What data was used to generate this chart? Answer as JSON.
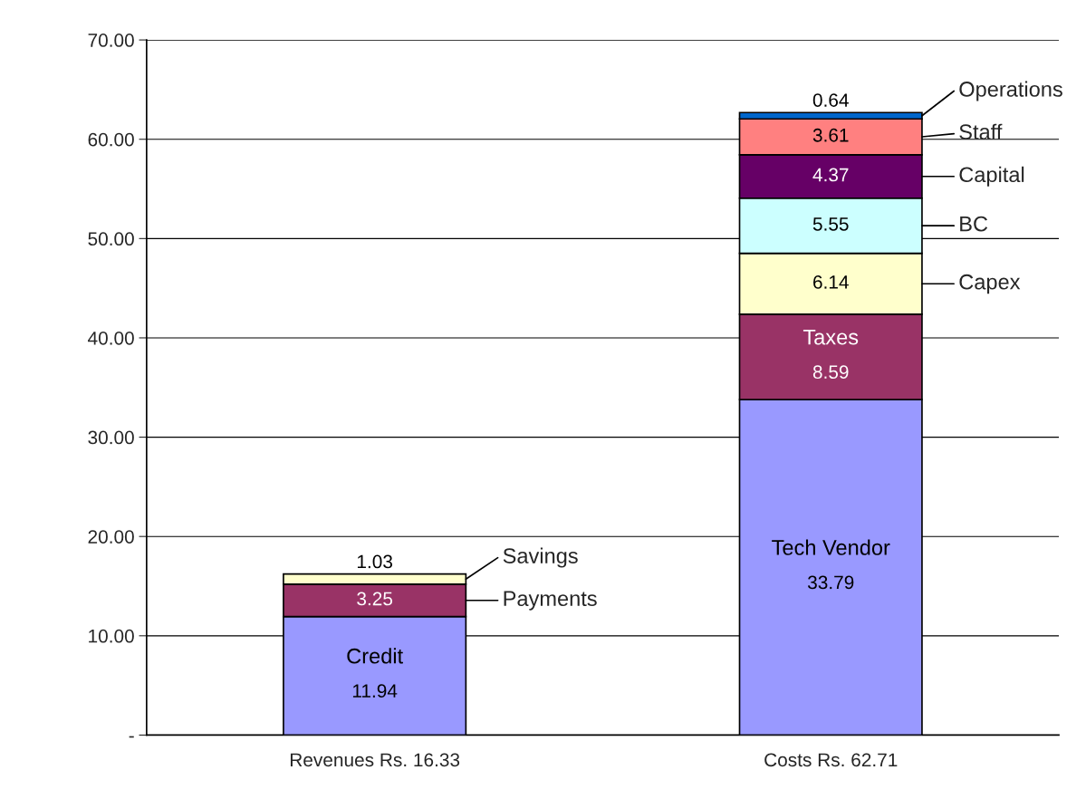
{
  "chart_data": {
    "type": "bar",
    "stacked": true,
    "data_labels": true,
    "legend": "right",
    "grid": "y",
    "categories": [
      "Revenues Rs. 16.33",
      "Costs Rs. 62.71"
    ],
    "series": [
      {
        "name": "Credit",
        "color": "#9999ff",
        "values": [
          11.94,
          null
        ]
      },
      {
        "name": "Payments",
        "color": "#993366",
        "values": [
          3.25,
          null
        ]
      },
      {
        "name": "Savings",
        "color": "#ffffcc",
        "values": [
          1.03,
          null
        ]
      },
      {
        "name": "Tech Vendor",
        "color": "#9999ff",
        "values": [
          null,
          33.79
        ]
      },
      {
        "name": "Taxes",
        "color": "#993366",
        "values": [
          null,
          8.59
        ]
      },
      {
        "name": "Capex",
        "color": "#ffffcc",
        "values": [
          null,
          6.14
        ]
      },
      {
        "name": "BC",
        "color": "#ccffff",
        "values": [
          null,
          5.55
        ]
      },
      {
        "name": "Capital",
        "color": "#660066",
        "values": [
          null,
          4.37
        ]
      },
      {
        "name": "Staff",
        "color": "#ff8080",
        "values": [
          null,
          3.61
        ]
      },
      {
        "name": "Operations",
        "color": "#0066cc",
        "values": [
          null,
          0.64
        ]
      }
    ],
    "ylim": [
      0,
      70
    ],
    "yticks": [
      {
        "value": 0,
        "label": "-"
      },
      {
        "value": 10,
        "label": "10.00"
      },
      {
        "value": 20,
        "label": "20.00"
      },
      {
        "value": 30,
        "label": "30.00"
      },
      {
        "value": 40,
        "label": "40.00"
      },
      {
        "value": 50,
        "label": "50.00"
      },
      {
        "value": 60,
        "label": "60.00"
      },
      {
        "value": 70,
        "label": "70.00"
      }
    ]
  }
}
